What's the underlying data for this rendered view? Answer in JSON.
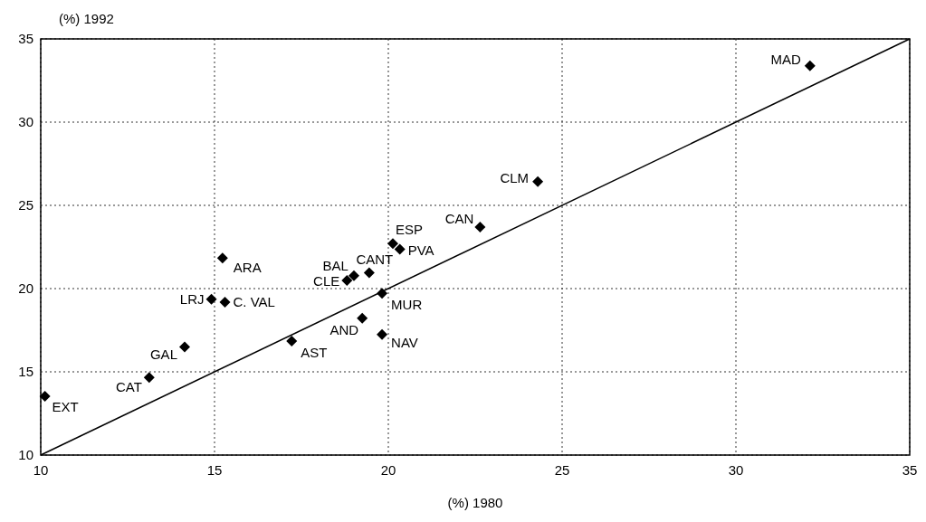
{
  "chart_data": {
    "type": "scatter",
    "xlabel": "(%) 1980",
    "ylabel": "(%) 1992",
    "xlim": [
      10,
      35
    ],
    "ylim": [
      10,
      35
    ],
    "xticks": [
      10,
      15,
      20,
      25,
      30,
      35
    ],
    "yticks": [
      10,
      15,
      20,
      25,
      30,
      35
    ],
    "grid": true,
    "series": [
      {
        "marker": "diamond",
        "color": "#000000",
        "x": [
          32.13,
          24.3,
          22.64,
          20.13,
          20.33,
          19.45,
          19.01,
          18.81,
          15.23,
          14.91,
          15.3,
          19.82,
          19.25,
          19.82,
          17.22,
          14.14,
          13.12,
          10.12
        ],
        "values": [
          33.38,
          26.42,
          23.7,
          22.71,
          22.36,
          20.95,
          20.77,
          20.49,
          21.83,
          19.36,
          19.18,
          19.71,
          18.22,
          17.24,
          16.85,
          16.5,
          14.66,
          13.53
        ]
      },
      {
        "type": "line",
        "color": "#000000",
        "x": [
          10,
          35
        ],
        "values": [
          10,
          35
        ]
      }
    ],
    "annotations": [
      {
        "text": "MAD",
        "x": 32.13,
        "y": 33.38
      },
      {
        "text": "CLM",
        "x": 24.3,
        "y": 26.42
      },
      {
        "text": "CAN",
        "x": 22.64,
        "y": 23.7
      },
      {
        "text": "ESP",
        "x": 20.13,
        "y": 22.71
      },
      {
        "text": "PVA",
        "x": 20.33,
        "y": 22.36
      },
      {
        "text": "CANT",
        "x": 19.45,
        "y": 20.95
      },
      {
        "text": "BAL",
        "x": 19.01,
        "y": 20.77
      },
      {
        "text": "CLE",
        "x": 18.81,
        "y": 20.49
      },
      {
        "text": "ARA",
        "x": 15.23,
        "y": 21.83
      },
      {
        "text": "LRJ",
        "x": 14.91,
        "y": 19.36
      },
      {
        "text": "C. VAL",
        "x": 15.3,
        "y": 19.18
      },
      {
        "text": "MUR",
        "x": 19.82,
        "y": 19.71
      },
      {
        "text": "AND",
        "x": 19.25,
        "y": 18.22
      },
      {
        "text": "NAV",
        "x": 19.82,
        "y": 17.24
      },
      {
        "text": "AST",
        "x": 17.22,
        "y": 16.85
      },
      {
        "text": "GAL",
        "x": 14.14,
        "y": 16.5
      },
      {
        "text": "CAT",
        "x": 13.12,
        "y": 14.66
      },
      {
        "text": "EXT",
        "x": 10.12,
        "y": 13.53
      }
    ]
  }
}
